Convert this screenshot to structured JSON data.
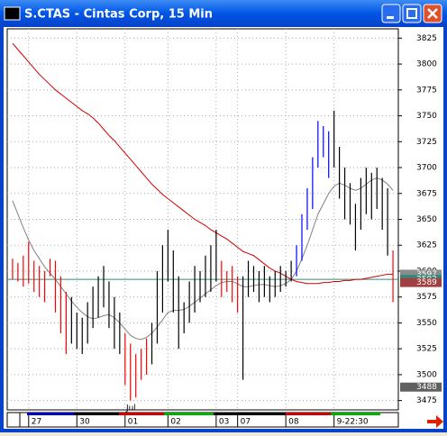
{
  "chart_data": {
    "type": "ohlc",
    "title": "S.CTAS - Cintas Corp, 15 Min",
    "annotation": "Jul",
    "xlim": [
      -1,
      72
    ],
    "xticks": [
      {
        "value": 3,
        "label": "27"
      },
      {
        "value": 12,
        "label": "30"
      },
      {
        "value": 21,
        "label": "01"
      },
      {
        "value": 29,
        "label": "02"
      },
      {
        "value": 38,
        "label": "03"
      },
      {
        "value": 42,
        "label": "07"
      },
      {
        "value": 51,
        "label": "08"
      },
      {
        "value": 60,
        "label": "9-22:30"
      }
    ],
    "ylim": [
      3466,
      3834
    ],
    "yticks": [
      3475,
      3500,
      3525,
      3550,
      3575,
      3600,
      3625,
      3650,
      3675,
      3700,
      3725,
      3750,
      3775,
      3800,
      3825
    ],
    "grid": true,
    "high": [
      3612,
      3608,
      3615,
      3628,
      3610,
      3605,
      3600,
      3612,
      3610,
      3595,
      3580,
      3575,
      3560,
      3555,
      3570,
      3585,
      3595,
      3605,
      3590,
      3575,
      3560,
      3540,
      3530,
      3520,
      3525,
      3535,
      3550,
      3600,
      3625,
      3640,
      3620,
      3595,
      3570,
      3590,
      3605,
      3600,
      3615,
      3625,
      3640,
      3610,
      3600,
      3605,
      3595,
      3595,
      3610,
      3605,
      3600,
      3605,
      3595,
      3600,
      3605,
      3600,
      3610,
      3625,
      3655,
      3680,
      3710,
      3745,
      3740,
      3735,
      3755,
      3720,
      3700,
      3685,
      3665,
      3690,
      3700,
      3695,
      3700,
      3690,
      3680,
      3620
    ],
    "low": [
      3592,
      3590,
      3585,
      3588,
      3580,
      3575,
      3570,
      3595,
      3560,
      3540,
      3520,
      3530,
      3525,
      3520,
      3530,
      3545,
      3555,
      3565,
      3545,
      3525,
      3520,
      3490,
      3475,
      3478,
      3495,
      3500,
      3510,
      3530,
      3560,
      3590,
      3560,
      3525,
      3540,
      3550,
      3560,
      3570,
      3575,
      3580,
      3590,
      3575,
      3580,
      3570,
      3560,
      3495,
      3575,
      3580,
      3570,
      3575,
      3570,
      3575,
      3580,
      3585,
      3590,
      3595,
      3610,
      3640,
      3660,
      3700,
      3710,
      3690,
      3700,
      3670,
      3650,
      3645,
      3620,
      3640,
      3655,
      3650,
      3660,
      3640,
      3615,
      3570
    ],
    "bar_colors": [
      "red",
      "red",
      "red",
      "red",
      "red",
      "red",
      "red",
      "red",
      "red",
      "red",
      "red",
      "black",
      "black",
      "black",
      "black",
      "black",
      "black",
      "black",
      "black",
      "black",
      "black",
      "red",
      "red",
      "red",
      "red",
      "red",
      "black",
      "black",
      "black",
      "black",
      "black",
      "black",
      "black",
      "black",
      "black",
      "black",
      "black",
      "black",
      "black",
      "red",
      "red",
      "red",
      "red",
      "black",
      "black",
      "black",
      "black",
      "black",
      "black",
      "black",
      "black",
      "black",
      "black",
      "blue",
      "blue",
      "blue",
      "blue",
      "blue",
      "blue",
      "blue",
      "black",
      "black",
      "black",
      "black",
      "black",
      "black",
      "black",
      "black",
      "black",
      "black",
      "black",
      "red"
    ],
    "series": [
      {
        "color": "#d00000",
        "values": [
          3820,
          3814,
          3808,
          3802,
          3796,
          3790,
          3785,
          3780,
          3775,
          3771,
          3767,
          3763,
          3759,
          3755,
          3752,
          3748,
          3743,
          3737,
          3731,
          3726,
          3720,
          3714,
          3708,
          3702,
          3696,
          3690,
          3684,
          3679,
          3674,
          3670,
          3666,
          3662,
          3658,
          3654,
          3650,
          3647,
          3644,
          3640,
          3637,
          3634,
          3631,
          3627,
          3623,
          3619,
          3617,
          3615,
          3611,
          3607,
          3603,
          3600,
          3598,
          3595,
          3592,
          3590,
          3589,
          3588,
          3588,
          3588,
          3589,
          3589,
          3590,
          3590,
          3591,
          3591,
          3592,
          3592,
          3593,
          3594,
          3595,
          3596,
          3597,
          3597
        ]
      },
      {
        "color": "#808080",
        "values": [
          3668,
          3655,
          3642,
          3630,
          3620,
          3612,
          3604,
          3598,
          3592,
          3585,
          3578,
          3571,
          3565,
          3560,
          3556,
          3554,
          3555,
          3557,
          3558,
          3555,
          3550,
          3544,
          3538,
          3535,
          3534,
          3536,
          3540,
          3546,
          3553,
          3560,
          3562,
          3562,
          3563,
          3566,
          3570,
          3574,
          3578,
          3582,
          3586,
          3589,
          3590,
          3590,
          3588,
          3585,
          3585,
          3586,
          3587,
          3587,
          3586,
          3585,
          3586,
          3588,
          3592,
          3600,
          3612,
          3625,
          3640,
          3655,
          3665,
          3675,
          3682,
          3685,
          3683,
          3680,
          3678,
          3680,
          3684,
          3688,
          3690,
          3688,
          3684,
          3678
        ]
      }
    ],
    "reference_line": {
      "value": 3592,
      "color": "#2e8b7a"
    },
    "price_markers": [
      {
        "value": 3597,
        "color": "#8c8c8c"
      },
      {
        "value": 3592,
        "color": "#2e8b7a"
      },
      {
        "value": 3589,
        "color": "#a04040"
      },
      {
        "value": 3488,
        "color": "#606060"
      }
    ]
  }
}
